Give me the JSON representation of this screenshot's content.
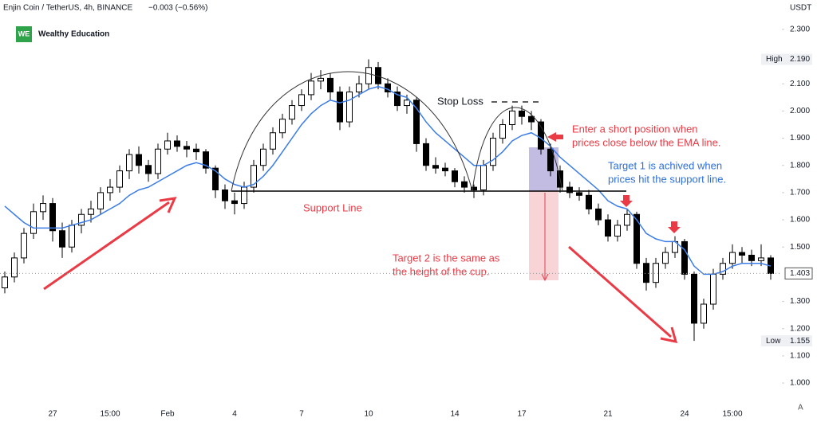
{
  "chart_data": {
    "type": "candlestick",
    "symbol": "Enjin Coin / TetherUS, 4h, BINANCE",
    "change": "−0.003 (−0.56%)",
    "logo_mark": "WE",
    "logo_text": "Wealthy Education",
    "currency": "USDT",
    "corner_label": "A",
    "ylim": [
      0.93,
      2.408
    ],
    "yticks": [
      {
        "value": 2.3,
        "label": "2.300"
      },
      {
        "value": 2.1,
        "label": "2.100"
      },
      {
        "value": 2.0,
        "label": "2.000"
      },
      {
        "value": 1.9,
        "label": "1.900"
      },
      {
        "value": 1.8,
        "label": "1.800"
      },
      {
        "value": 1.7,
        "label": "1.700"
      },
      {
        "value": 1.6,
        "label": "1.600"
      },
      {
        "value": 1.5,
        "label": "1.500"
      },
      {
        "value": 1.3,
        "label": "1.300"
      },
      {
        "value": 1.2,
        "label": "1.200"
      },
      {
        "value": 1.1,
        "label": "1.100"
      },
      {
        "value": 1.0,
        "label": "1.000"
      }
    ],
    "high": {
      "name": "High",
      "value": 2.19,
      "label": "2.190"
    },
    "low": {
      "name": "Low",
      "value": 1.155,
      "label": "1.155"
    },
    "last": {
      "value": 1.403,
      "label": "1.403"
    },
    "categories": [
      null,
      null,
      null,
      null,
      null,
      "27",
      null,
      null,
      null,
      null,
      null,
      "15:00",
      null,
      null,
      null,
      null,
      null,
      "Feb",
      null,
      null,
      null,
      null,
      null,
      null,
      "4",
      null,
      null,
      null,
      null,
      null,
      null,
      "7",
      null,
      null,
      null,
      null,
      null,
      null,
      "10",
      null,
      null,
      null,
      null,
      null,
      null,
      null,
      null,
      "14",
      null,
      null,
      null,
      null,
      null,
      null,
      "17",
      null,
      null,
      null,
      null,
      null,
      null,
      null,
      null,
      "21",
      null,
      null,
      null,
      null,
      null,
      null,
      null,
      "24",
      null,
      null,
      null,
      null,
      "15:00",
      null,
      null,
      null,
      null
    ],
    "up_color": "#ffffff",
    "down_color": "#000000",
    "ohlc": [
      [
        1.35,
        1.41,
        1.33,
        1.39
      ],
      [
        1.39,
        1.48,
        1.37,
        1.46
      ],
      [
        1.46,
        1.57,
        1.44,
        1.55
      ],
      [
        1.55,
        1.66,
        1.53,
        1.63
      ],
      [
        1.63,
        1.69,
        1.6,
        1.66
      ],
      [
        1.66,
        1.68,
        1.52,
        1.56
      ],
      [
        1.56,
        1.59,
        1.46,
        1.5
      ],
      [
        1.5,
        1.6,
        1.48,
        1.58
      ],
      [
        1.58,
        1.64,
        1.55,
        1.62
      ],
      [
        1.62,
        1.67,
        1.59,
        1.64
      ],
      [
        1.64,
        1.72,
        1.62,
        1.7
      ],
      [
        1.7,
        1.75,
        1.67,
        1.72
      ],
      [
        1.72,
        1.8,
        1.7,
        1.78
      ],
      [
        1.78,
        1.86,
        1.75,
        1.84
      ],
      [
        1.84,
        1.87,
        1.77,
        1.8
      ],
      [
        1.8,
        1.82,
        1.74,
        1.77
      ],
      [
        1.77,
        1.88,
        1.75,
        1.86
      ],
      [
        1.86,
        1.92,
        1.84,
        1.89
      ],
      [
        1.89,
        1.91,
        1.85,
        1.87
      ],
      [
        1.87,
        1.89,
        1.83,
        1.86
      ],
      [
        1.86,
        1.88,
        1.82,
        1.85
      ],
      [
        1.85,
        1.86,
        1.77,
        1.79
      ],
      [
        1.79,
        1.8,
        1.68,
        1.71
      ],
      [
        1.71,
        1.73,
        1.64,
        1.67
      ],
      [
        1.67,
        1.7,
        1.62,
        1.66
      ],
      [
        1.66,
        1.74,
        1.64,
        1.72
      ],
      [
        1.72,
        1.82,
        1.7,
        1.8
      ],
      [
        1.8,
        1.88,
        1.78,
        1.86
      ],
      [
        1.86,
        1.94,
        1.84,
        1.92
      ],
      [
        1.92,
        1.99,
        1.9,
        1.97
      ],
      [
        1.97,
        2.04,
        1.95,
        2.02
      ],
      [
        2.02,
        2.08,
        2.0,
        2.06
      ],
      [
        2.06,
        2.14,
        2.04,
        2.11
      ],
      [
        2.11,
        2.15,
        2.08,
        2.12
      ],
      [
        2.12,
        2.14,
        2.04,
        2.07
      ],
      [
        2.07,
        2.09,
        1.93,
        1.96
      ],
      [
        1.96,
        2.09,
        1.94,
        2.07
      ],
      [
        2.07,
        2.13,
        2.05,
        2.1
      ],
      [
        2.1,
        2.19,
        2.08,
        2.16
      ],
      [
        2.16,
        2.18,
        2.08,
        2.1
      ],
      [
        2.1,
        2.12,
        2.05,
        2.07
      ],
      [
        2.07,
        2.09,
        2.0,
        2.02
      ],
      [
        2.02,
        2.06,
        1.99,
        2.04
      ],
      [
        2.04,
        2.05,
        1.85,
        1.88
      ],
      [
        1.88,
        1.9,
        1.78,
        1.8
      ],
      [
        1.8,
        1.83,
        1.77,
        1.79
      ],
      [
        1.79,
        1.81,
        1.76,
        1.78
      ],
      [
        1.78,
        1.79,
        1.72,
        1.74
      ],
      [
        1.74,
        1.76,
        1.7,
        1.72
      ],
      [
        1.72,
        1.73,
        1.68,
        1.71
      ],
      [
        1.71,
        1.82,
        1.69,
        1.8
      ],
      [
        1.8,
        1.92,
        1.78,
        1.9
      ],
      [
        1.9,
        1.97,
        1.88,
        1.95
      ],
      [
        1.95,
        2.02,
        1.93,
        2.0
      ],
      [
        2.0,
        2.02,
        1.95,
        1.98
      ],
      [
        1.98,
        2.0,
        1.93,
        1.96
      ],
      [
        1.96,
        1.97,
        1.84,
        1.86
      ],
      [
        1.86,
        1.88,
        1.76,
        1.78
      ],
      [
        1.78,
        1.8,
        1.7,
        1.72
      ],
      [
        1.72,
        1.74,
        1.68,
        1.7
      ],
      [
        1.7,
        1.72,
        1.67,
        1.69
      ],
      [
        1.69,
        1.71,
        1.62,
        1.64
      ],
      [
        1.64,
        1.66,
        1.58,
        1.6
      ],
      [
        1.6,
        1.62,
        1.52,
        1.54
      ],
      [
        1.54,
        1.6,
        1.52,
        1.58
      ],
      [
        1.58,
        1.64,
        1.56,
        1.62
      ],
      [
        1.62,
        1.63,
        1.42,
        1.44
      ],
      [
        1.44,
        1.46,
        1.34,
        1.37
      ],
      [
        1.37,
        1.46,
        1.35,
        1.44
      ],
      [
        1.44,
        1.5,
        1.42,
        1.48
      ],
      [
        1.48,
        1.54,
        1.46,
        1.52
      ],
      [
        1.52,
        1.53,
        1.38,
        1.4
      ],
      [
        1.4,
        1.41,
        1.155,
        1.22
      ],
      [
        1.22,
        1.31,
        1.2,
        1.29
      ],
      [
        1.29,
        1.42,
        1.27,
        1.4
      ],
      [
        1.4,
        1.46,
        1.38,
        1.44
      ],
      [
        1.44,
        1.51,
        1.42,
        1.48
      ],
      [
        1.48,
        1.5,
        1.44,
        1.47
      ],
      [
        1.47,
        1.49,
        1.43,
        1.45
      ],
      [
        1.45,
        1.51,
        1.43,
        1.46
      ],
      [
        1.46,
        1.47,
        1.38,
        1.403
      ]
    ],
    "ema": {
      "color": "#3b7de8",
      "values": [
        1.65,
        1.62,
        1.59,
        1.57,
        1.57,
        1.57,
        1.57,
        1.58,
        1.59,
        1.6,
        1.62,
        1.64,
        1.66,
        1.69,
        1.71,
        1.72,
        1.74,
        1.76,
        1.78,
        1.8,
        1.81,
        1.8,
        1.78,
        1.75,
        1.73,
        1.72,
        1.73,
        1.76,
        1.8,
        1.85,
        1.9,
        1.95,
        1.99,
        2.02,
        2.04,
        2.03,
        2.04,
        2.06,
        2.08,
        2.09,
        2.08,
        2.06,
        2.05,
        2.01,
        1.96,
        1.92,
        1.89,
        1.86,
        1.83,
        1.8,
        1.8,
        1.82,
        1.85,
        1.89,
        1.91,
        1.92,
        1.9,
        1.87,
        1.83,
        1.8,
        1.77,
        1.74,
        1.71,
        1.67,
        1.65,
        1.64,
        1.6,
        1.55,
        1.53,
        1.52,
        1.52,
        1.49,
        1.43,
        1.4,
        1.4,
        1.41,
        1.43,
        1.44,
        1.44,
        1.44,
        1.43
      ]
    },
    "annotations": {
      "stop_loss": "Stop Loss",
      "entry": [
        "Enter a short position when",
        "prices close below the EMA line."
      ],
      "target1": [
        "Target 1 is achived when",
        "prices hit the support line."
      ],
      "target2": [
        "Target 2 is the same as",
        "the height of the cup."
      ],
      "support": "Support Line"
    }
  }
}
